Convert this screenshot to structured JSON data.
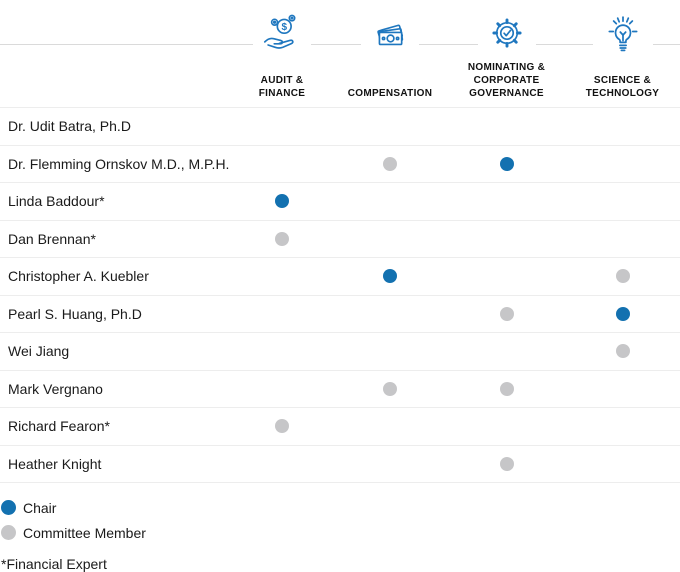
{
  "colors": {
    "chair_blue": "#1371b0",
    "member_gray": "#c6c6c8",
    "icon_blue": "#1f77bf",
    "row_line": "#ededed",
    "header_line": "#dadada",
    "text": "#1a1a1a"
  },
  "chart_data": {
    "type": "table",
    "title": "Board committee composition matrix",
    "columns": [
      {
        "label": "AUDIT & FINANCE",
        "label_display": "AUDIT &\nFINANCE",
        "icon": "hand-coins-icon"
      },
      {
        "label": "COMPENSATION",
        "label_display": "COMPENSATION",
        "icon": "banknotes-icon"
      },
      {
        "label": "NOMINATING & CORPORATE GOVERNANCE",
        "label_display": "NOMINATING &\nCORPORATE\nGOVERNANCE",
        "icon": "gear-check-icon"
      },
      {
        "label": "SCIENCE & TECHNOLOGY",
        "label_display": "SCIENCE &\nTECHNOLOGY",
        "icon": "lightbulb-icon"
      }
    ],
    "rows": [
      {
        "name": "Dr. Udit Batra, Ph.D",
        "memberships": [
          "",
          "",
          "",
          ""
        ]
      },
      {
        "name": "Dr. Flemming Ornskov M.D., M.P.H.",
        "memberships": [
          "",
          "member",
          "chair",
          ""
        ]
      },
      {
        "name": "Linda Baddour*",
        "memberships": [
          "chair",
          "",
          "",
          ""
        ]
      },
      {
        "name": "Dan Brennan*",
        "memberships": [
          "member",
          "",
          "",
          ""
        ]
      },
      {
        "name": "Christopher A. Kuebler",
        "memberships": [
          "",
          "chair",
          "",
          "member"
        ]
      },
      {
        "name": "Pearl S. Huang, Ph.D",
        "memberships": [
          "",
          "",
          "member",
          "chair"
        ]
      },
      {
        "name": "Wei Jiang",
        "memberships": [
          "",
          "",
          "",
          "member"
        ]
      },
      {
        "name": "Mark Vergnano",
        "memberships": [
          "",
          "member",
          "member",
          ""
        ]
      },
      {
        "name": "Richard Fearon*",
        "memberships": [
          "member",
          "",
          "",
          ""
        ]
      },
      {
        "name": "Heather Knight",
        "memberships": [
          "",
          "",
          "member",
          ""
        ]
      }
    ],
    "legend": {
      "chair_label": "Chair",
      "member_label": "Committee Member"
    },
    "footnote": "*Financial Expert"
  }
}
